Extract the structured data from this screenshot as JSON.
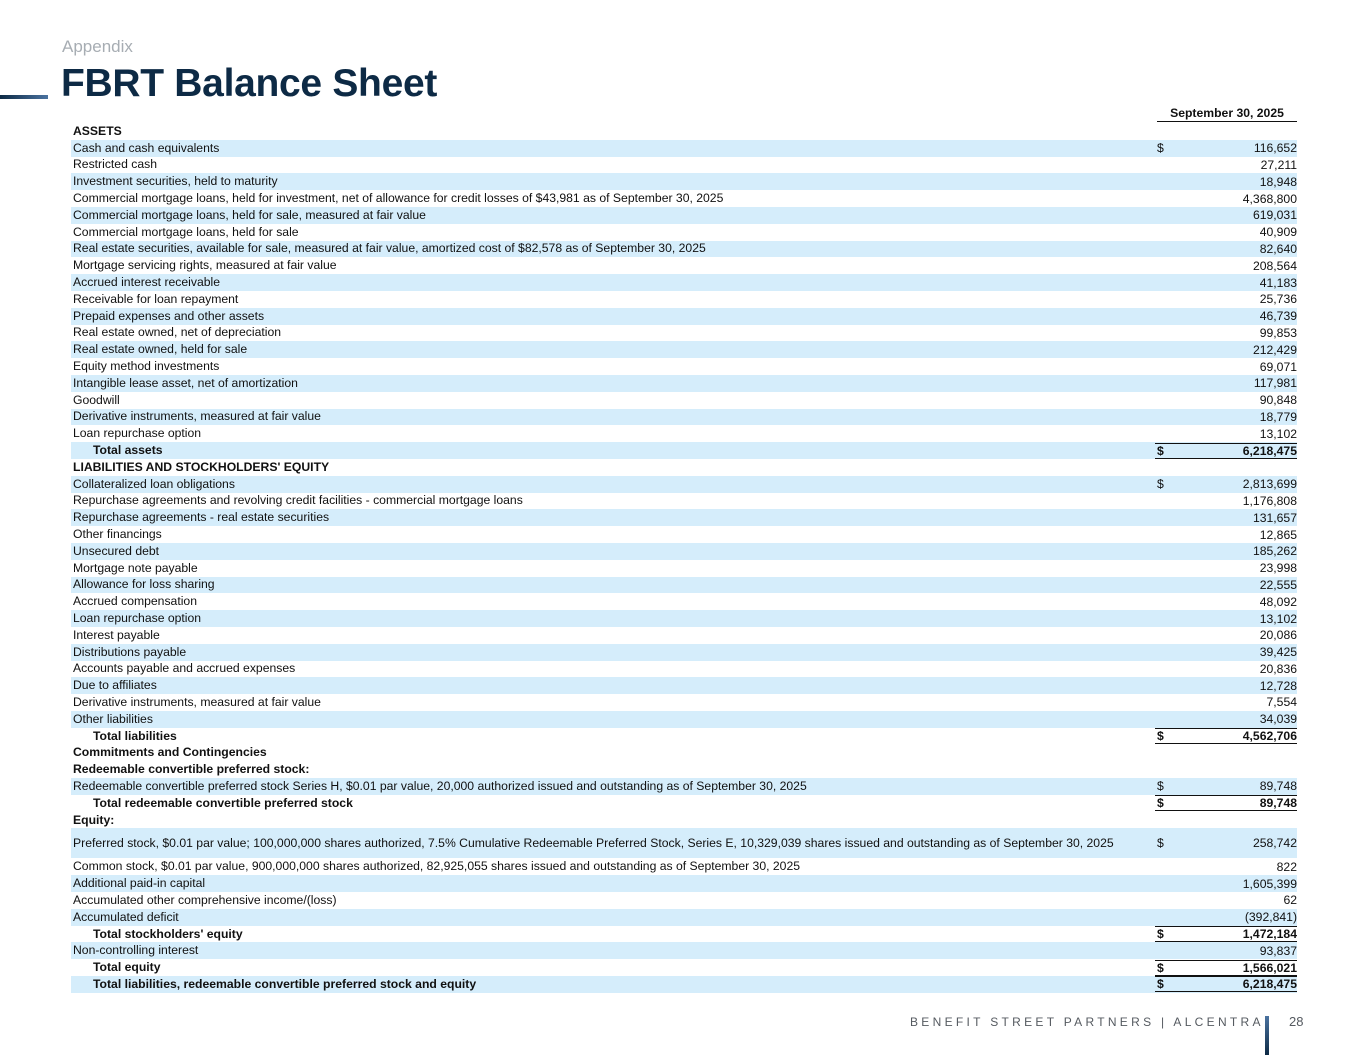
{
  "header": {
    "section": "Appendix",
    "title": "FBRT Balance Sheet"
  },
  "table": {
    "column_header": "September 30, 2025",
    "rows": [
      {
        "label": "ASSETS",
        "type": "header",
        "shaded": false,
        "cur": "",
        "value": ""
      },
      {
        "label": "Cash and cash equivalents",
        "type": "item",
        "shaded": true,
        "cur": "$",
        "value": "116,652"
      },
      {
        "label": "Restricted cash",
        "type": "item",
        "shaded": false,
        "cur": "",
        "value": "27,211"
      },
      {
        "label": "Investment securities, held to maturity",
        "type": "item",
        "shaded": true,
        "cur": "",
        "value": "18,948"
      },
      {
        "label": "Commercial mortgage loans, held for investment, net of allowance for credit losses of $43,981 as of September 30, 2025",
        "type": "item",
        "shaded": false,
        "cur": "",
        "value": "4,368,800"
      },
      {
        "label": "Commercial mortgage loans, held for sale, measured at fair value",
        "type": "item",
        "shaded": true,
        "cur": "",
        "value": "619,031"
      },
      {
        "label": "Commercial mortgage loans, held for sale",
        "type": "item",
        "shaded": false,
        "cur": "",
        "value": "40,909"
      },
      {
        "label": "Real estate securities, available for sale, measured at fair value, amortized cost of $82,578 as of September 30, 2025",
        "type": "item",
        "shaded": true,
        "cur": "",
        "value": "82,640"
      },
      {
        "label": "Mortgage servicing rights, measured at fair value",
        "type": "item",
        "shaded": false,
        "cur": "",
        "value": "208,564"
      },
      {
        "label": "Accrued interest receivable",
        "type": "item",
        "shaded": true,
        "cur": "",
        "value": "41,183"
      },
      {
        "label": "Receivable for loan repayment",
        "type": "item",
        "shaded": false,
        "cur": "",
        "value": "25,736"
      },
      {
        "label": "Prepaid expenses and other assets",
        "type": "item",
        "shaded": true,
        "cur": "",
        "value": "46,739"
      },
      {
        "label": "Real estate owned, net of depreciation",
        "type": "item",
        "shaded": false,
        "cur": "",
        "value": "99,853"
      },
      {
        "label": "Real estate owned, held for sale",
        "type": "item",
        "shaded": true,
        "cur": "",
        "value": "212,429"
      },
      {
        "label": "Equity method investments",
        "type": "item",
        "shaded": false,
        "cur": "",
        "value": "69,071"
      },
      {
        "label": "Intangible lease asset, net of amortization",
        "type": "item",
        "shaded": true,
        "cur": "",
        "value": "117,981"
      },
      {
        "label": "Goodwill",
        "type": "item",
        "shaded": false,
        "cur": "",
        "value": "90,848"
      },
      {
        "label": "Derivative instruments, measured at fair value",
        "type": "item",
        "shaded": true,
        "cur": "",
        "value": "18,779"
      },
      {
        "label": "Loan repurchase option",
        "type": "item",
        "shaded": false,
        "cur": "",
        "value": "13,102"
      },
      {
        "label": "Total assets",
        "type": "total",
        "shaded": true,
        "cur": "$",
        "value": "6,218,475"
      },
      {
        "label": "LIABILITIES AND STOCKHOLDERS' EQUITY",
        "type": "header",
        "shaded": false,
        "cur": "",
        "value": ""
      },
      {
        "label": "Collateralized loan obligations",
        "type": "item",
        "shaded": true,
        "cur": "$",
        "value": "2,813,699"
      },
      {
        "label": "Repurchase agreements and revolving credit facilities - commercial mortgage loans",
        "type": "item",
        "shaded": false,
        "cur": "",
        "value": "1,176,808"
      },
      {
        "label": "Repurchase agreements - real estate securities",
        "type": "item",
        "shaded": true,
        "cur": "",
        "value": "131,657"
      },
      {
        "label": "Other financings",
        "type": "item",
        "shaded": false,
        "cur": "",
        "value": "12,865"
      },
      {
        "label": "Unsecured debt",
        "type": "item",
        "shaded": true,
        "cur": "",
        "value": "185,262"
      },
      {
        "label": "Mortgage note payable",
        "type": "item",
        "shaded": false,
        "cur": "",
        "value": "23,998"
      },
      {
        "label": "Allowance for loss sharing",
        "type": "item",
        "shaded": true,
        "cur": "",
        "value": "22,555"
      },
      {
        "label": "Accrued compensation",
        "type": "item",
        "shaded": false,
        "cur": "",
        "value": "48,092"
      },
      {
        "label": "Loan repurchase option",
        "type": "item",
        "shaded": true,
        "cur": "",
        "value": "13,102"
      },
      {
        "label": "Interest payable",
        "type": "item",
        "shaded": false,
        "cur": "",
        "value": "20,086"
      },
      {
        "label": "Distributions payable",
        "type": "item",
        "shaded": true,
        "cur": "",
        "value": "39,425"
      },
      {
        "label": "Accounts payable and accrued expenses",
        "type": "item",
        "shaded": false,
        "cur": "",
        "value": "20,836"
      },
      {
        "label": "Due to affiliates",
        "type": "item",
        "shaded": true,
        "cur": "",
        "value": "12,728"
      },
      {
        "label": "Derivative instruments, measured at fair value",
        "type": "item",
        "shaded": false,
        "cur": "",
        "value": "7,554"
      },
      {
        "label": "Other liabilities",
        "type": "item",
        "shaded": true,
        "cur": "",
        "value": "34,039"
      },
      {
        "label": "Total liabilities",
        "type": "total",
        "shaded": false,
        "cur": "$",
        "value": "4,562,706"
      },
      {
        "label": "Commitments and Contingencies",
        "type": "header",
        "shaded": false,
        "cur": "",
        "value": ""
      },
      {
        "label": "Redeemable convertible preferred stock:",
        "type": "header",
        "shaded": false,
        "cur": "",
        "value": ""
      },
      {
        "label": "Redeemable convertible preferred stock Series H, $0.01 par value, 20,000 authorized issued and outstanding as of September 30, 2025",
        "type": "item",
        "shaded": true,
        "cur": "$",
        "value": "89,748"
      },
      {
        "label": "Total redeemable convertible preferred stock",
        "type": "total",
        "shaded": false,
        "cur": "$",
        "value": "89,748"
      },
      {
        "label": "Equity:",
        "type": "header",
        "shaded": false,
        "cur": "",
        "value": ""
      },
      {
        "label": "Preferred stock, $0.01 par value; 100,000,000 shares authorized, 7.5% Cumulative Redeemable Preferred Stock, Series E, 10,329,039 shares issued and outstanding as of September 30, 2025",
        "type": "item",
        "shaded": true,
        "tall": true,
        "cur": "$",
        "value": "258,742"
      },
      {
        "label": "Common stock, $0.01 par value, 900,000,000 shares authorized, 82,925,055 shares issued and outstanding as of September 30, 2025",
        "type": "item",
        "shaded": false,
        "cur": "",
        "value": "822"
      },
      {
        "label": "Additional paid-in capital",
        "type": "item",
        "shaded": true,
        "cur": "",
        "value": "1,605,399"
      },
      {
        "label": "Accumulated other comprehensive income/(loss)",
        "type": "item",
        "shaded": false,
        "cur": "",
        "value": "62"
      },
      {
        "label": "Accumulated deficit",
        "type": "item",
        "shaded": true,
        "cur": "",
        "value": "(392,841)"
      },
      {
        "label": "Total stockholders' equity",
        "type": "total",
        "shaded": false,
        "cur": "$",
        "value": "1,472,184"
      },
      {
        "label": "Non-controlling interest",
        "type": "item",
        "shaded": true,
        "cur": "",
        "value": "93,837"
      },
      {
        "label": "Total equity",
        "type": "total",
        "shaded": false,
        "cur": "$",
        "value": "1,566,021"
      },
      {
        "label": "Total liabilities, redeemable convertible preferred stock and equity",
        "type": "total",
        "shaded": true,
        "cur": "$",
        "value": "6,218,475"
      }
    ]
  },
  "footer": {
    "brand": "BENEFIT STREET PARTNERS | ALCENTRA",
    "page_number": "28"
  }
}
